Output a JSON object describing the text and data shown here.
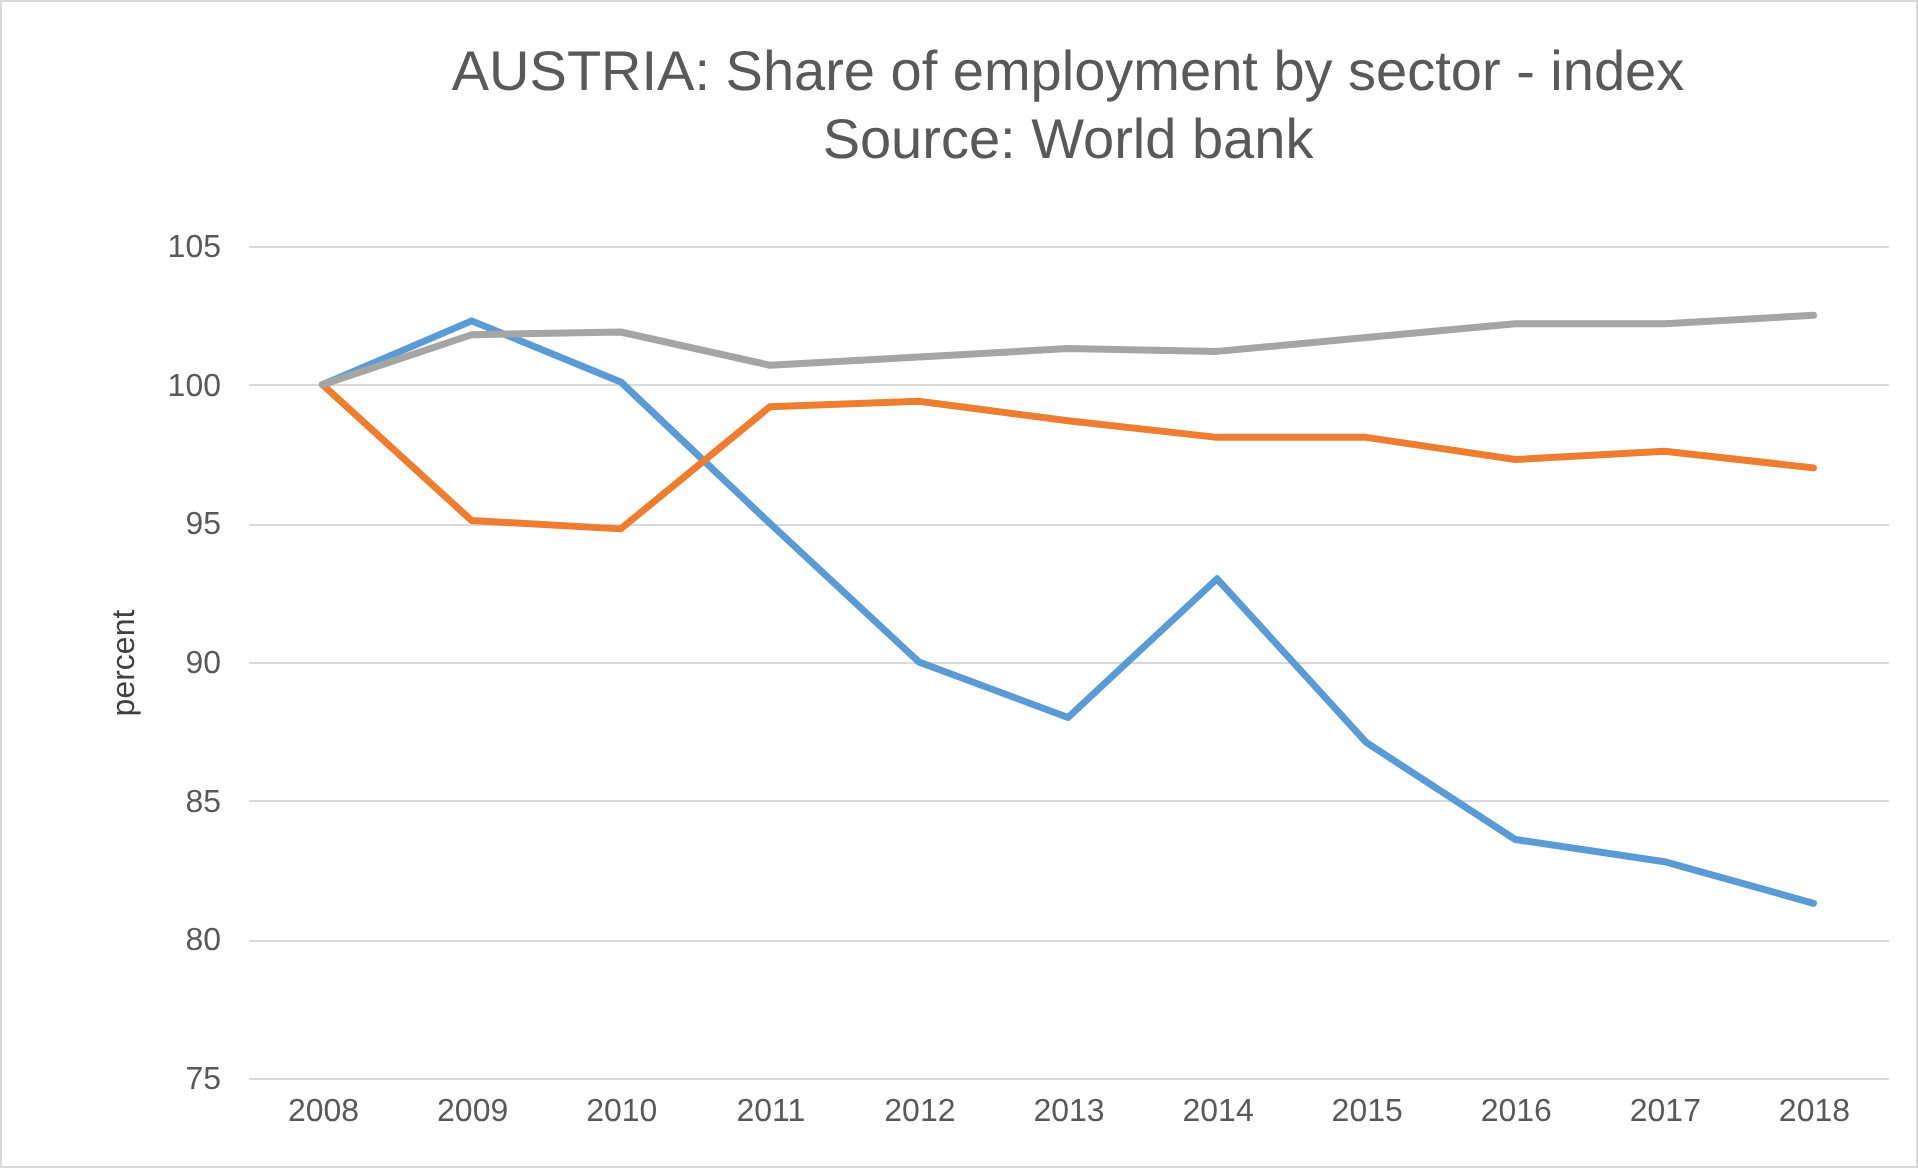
{
  "chart_data": {
    "type": "line",
    "title": "AUSTRIA: Share of employment by sector - index",
    "subtitle": "Source: World bank",
    "ylabel": "percent",
    "categories": [
      "2008",
      "2009",
      "2010",
      "2011",
      "2012",
      "2013",
      "2014",
      "2015",
      "2016",
      "2017",
      "2018"
    ],
    "series": [
      {
        "color": "#5b9bd5",
        "values": [
          100,
          102.3,
          100.1,
          95.0,
          90.0,
          88.0,
          93.0,
          87.1,
          83.6,
          82.8,
          81.3
        ]
      },
      {
        "color": "#ed7d31",
        "values": [
          100,
          95.1,
          94.8,
          99.2,
          99.4,
          98.7,
          98.1,
          98.1,
          97.3,
          97.6,
          97.0
        ]
      },
      {
        "color": "#a5a5a5",
        "values": [
          100,
          101.8,
          101.9,
          100.7,
          101.0,
          101.3,
          101.2,
          101.7,
          102.2,
          102.2,
          102.5
        ]
      }
    ],
    "ylim": [
      75,
      105
    ],
    "yticks": [
      75,
      80,
      85,
      90,
      95,
      100,
      105
    ],
    "grid": "y",
    "marker": "none",
    "line_style": "solid"
  }
}
